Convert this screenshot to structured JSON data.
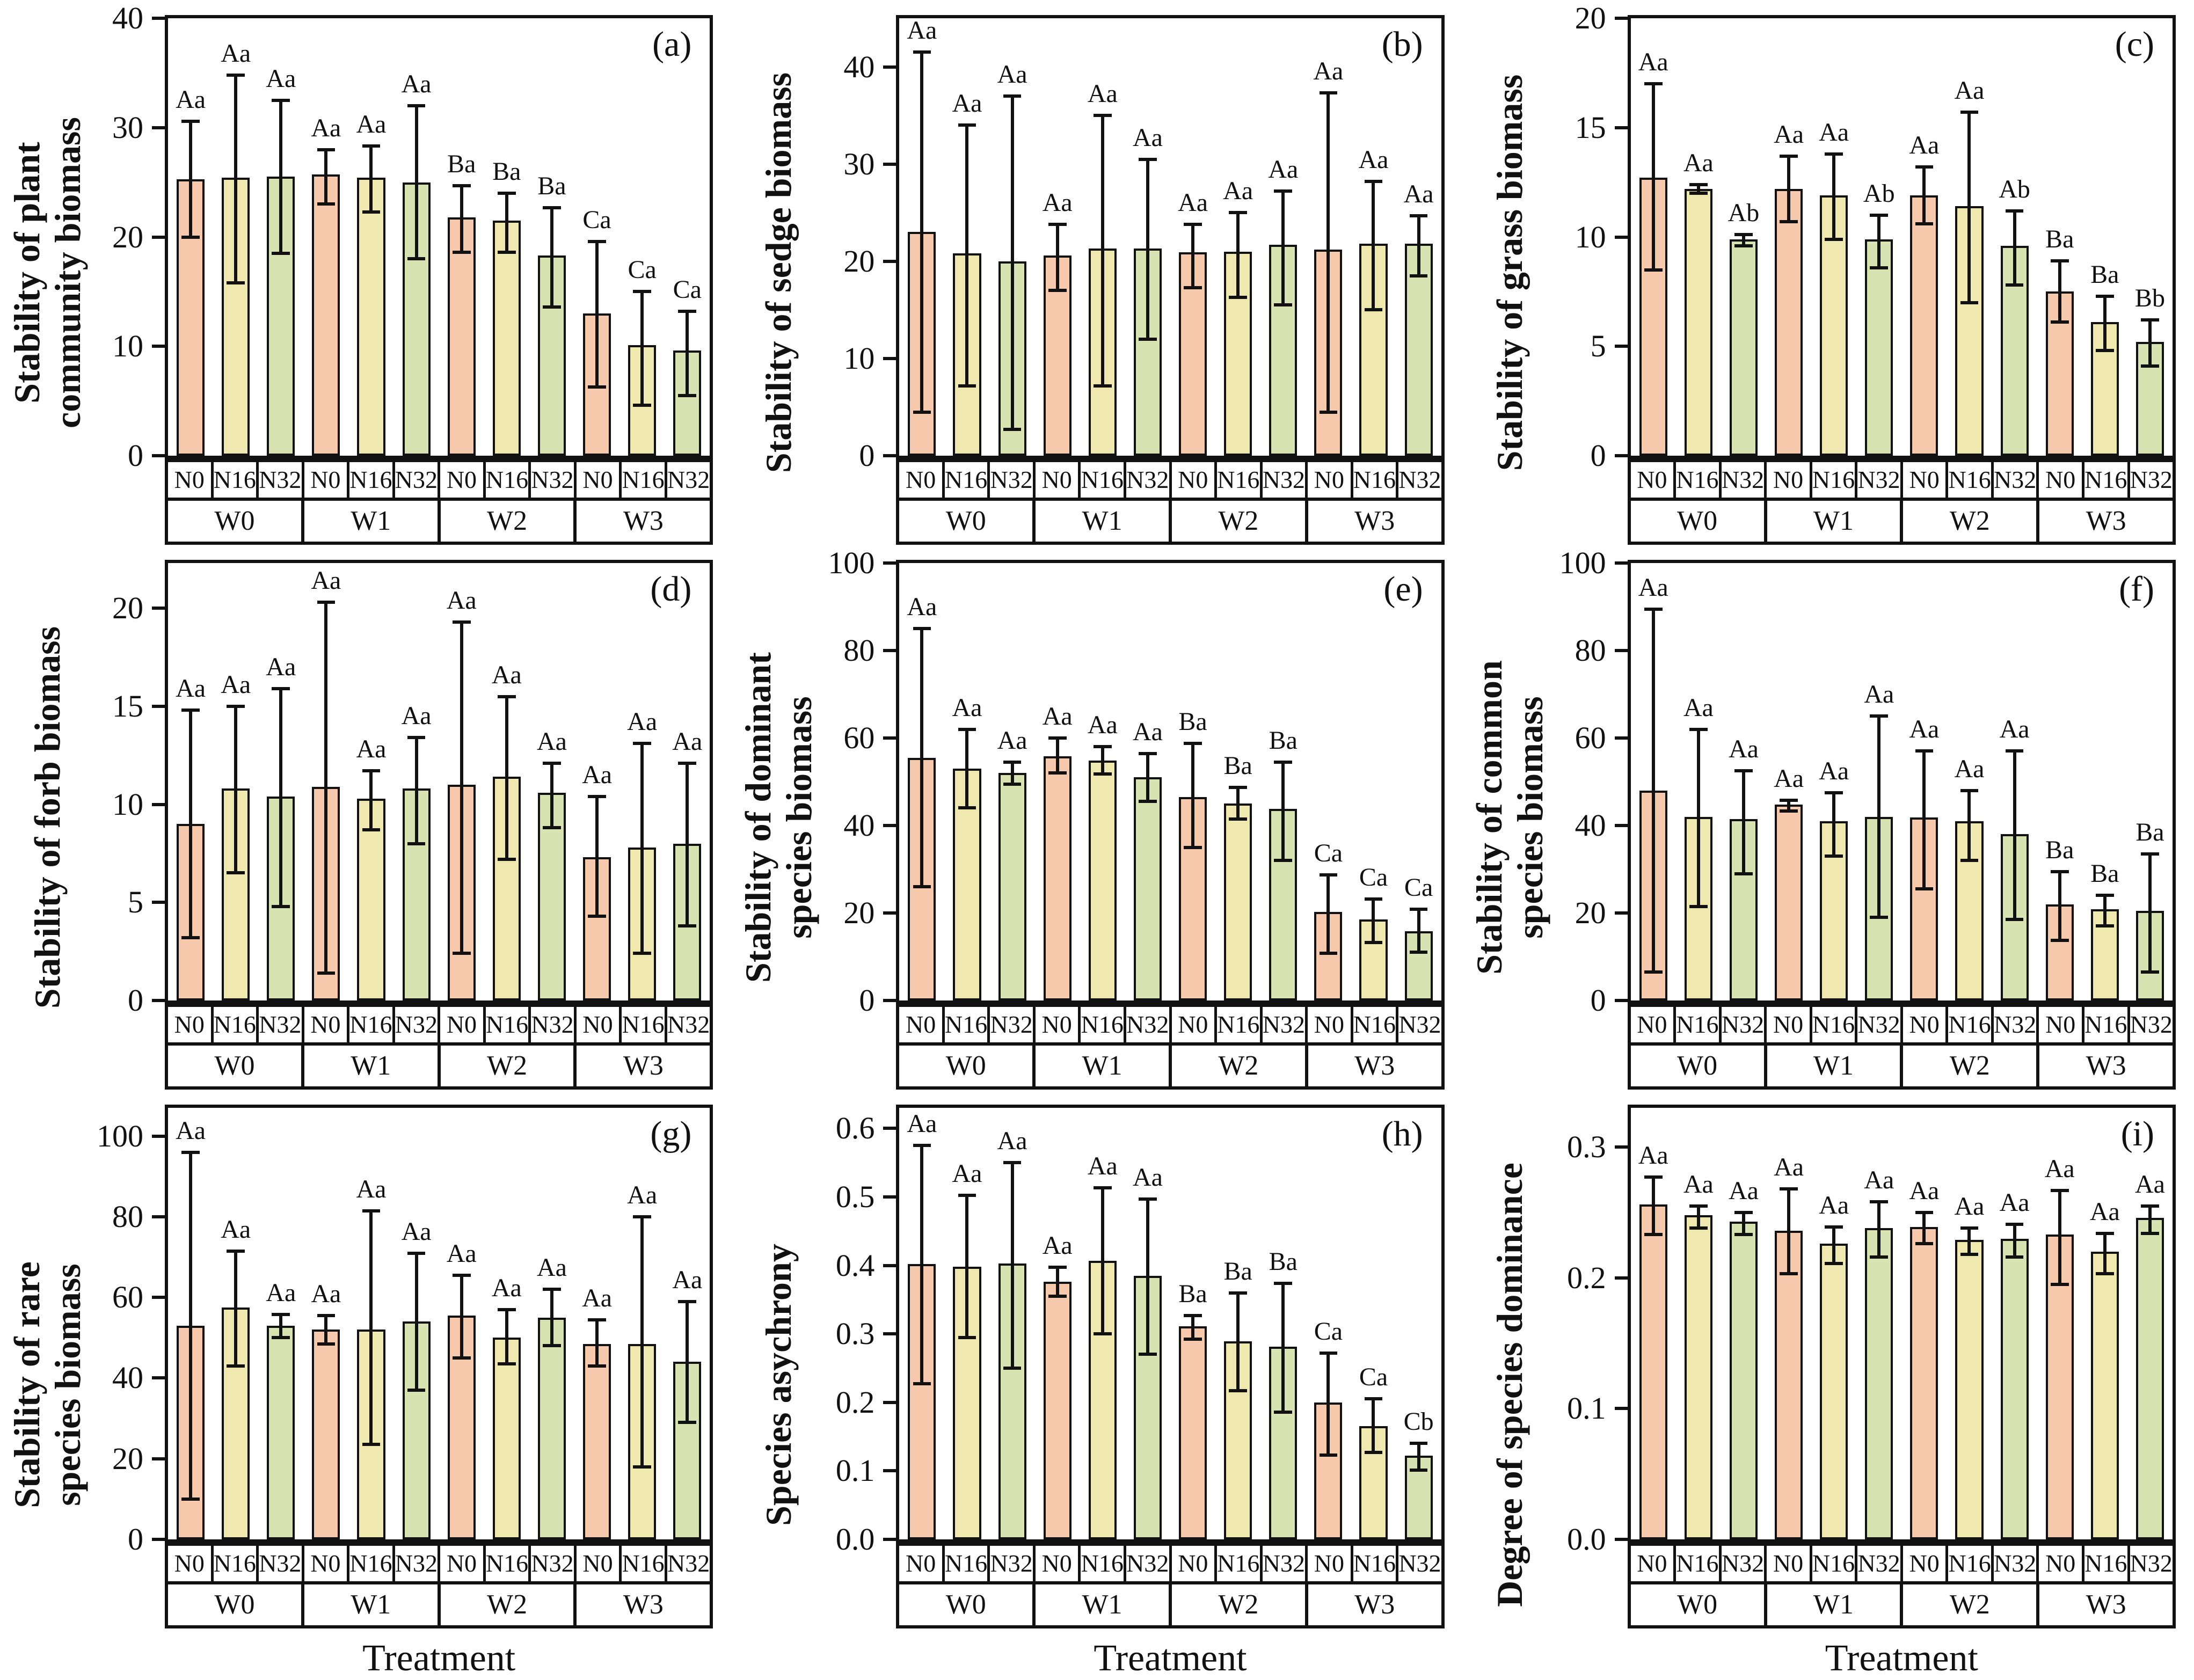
{
  "figure": {
    "xlabel": "Treatment",
    "n_labels": [
      "N0",
      "N16",
      "N32"
    ],
    "w_labels": [
      "W0",
      "W1",
      "W2",
      "W3"
    ],
    "colors": {
      "n0_bar": "#F7C9AC",
      "n16_bar": "#EFE9AF",
      "n32_bar": "#D7E3B0",
      "outline": "#111111"
    }
  },
  "chart_data": [
    {
      "id": "a",
      "type": "bar",
      "panel_label": "(a)",
      "ylabel_lines": [
        "Stability of plant",
        "community biomass"
      ],
      "ylim": [
        0,
        40
      ],
      "yticks": [
        0,
        10,
        20,
        30,
        40
      ],
      "ytick_labels": [
        "0",
        "10",
        "20",
        "30",
        "40"
      ],
      "groups": [
        "W0",
        "W1",
        "W2",
        "W3"
      ],
      "sub_labels": [
        "N0",
        "N16",
        "N32"
      ],
      "values": [
        25.3,
        25.4,
        25.5,
        25.7,
        25.4,
        25.0,
        21.8,
        21.5,
        18.3,
        13.0,
        10.1,
        9.6
      ],
      "err_low": [
        20.0,
        15.8,
        18.5,
        23.0,
        22.3,
        18.0,
        18.6,
        18.6,
        13.6,
        6.3,
        4.6,
        5.5
      ],
      "err_high": [
        30.6,
        34.8,
        32.5,
        28.0,
        28.3,
        32.0,
        24.7,
        24.0,
        22.7,
        19.6,
        15.0,
        13.2
      ],
      "letters": [
        "Aa",
        "Aa",
        "Aa",
        "Aa",
        "Aa",
        "Aa",
        "Ba",
        "Ba",
        "Ba",
        "Ca",
        "Ca",
        "Ca"
      ],
      "show_xlabel": false
    },
    {
      "id": "b",
      "type": "bar",
      "panel_label": "(b)",
      "ylabel_lines": [
        "Stability of sedge biomass"
      ],
      "ylim": [
        0,
        45
      ],
      "yticks": [
        0,
        10,
        20,
        30,
        40
      ],
      "ytick_labels": [
        "0",
        "10",
        "20",
        "30",
        "40"
      ],
      "groups": [
        "W0",
        "W1",
        "W2",
        "W3"
      ],
      "sub_labels": [
        "N0",
        "N16",
        "N32"
      ],
      "values": [
        23.0,
        20.8,
        20.0,
        20.6,
        21.3,
        21.3,
        20.9,
        21.0,
        21.7,
        21.2,
        21.8,
        21.8
      ],
      "err_low": [
        4.5,
        7.2,
        2.7,
        17.0,
        7.2,
        12.0,
        17.3,
        16.3,
        15.5,
        4.5,
        15.0,
        18.5
      ],
      "err_high": [
        41.5,
        34.0,
        37.0,
        23.8,
        35.0,
        30.5,
        23.8,
        25.0,
        27.2,
        37.3,
        28.2,
        24.7
      ],
      "letters": [
        "Aa",
        "Aa",
        "Aa",
        "Aa",
        "Aa",
        "Aa",
        "Aa",
        "Aa",
        "Aa",
        "Aa",
        "Aa",
        "Aa"
      ],
      "show_xlabel": false
    },
    {
      "id": "c",
      "type": "bar",
      "panel_label": "(c)",
      "ylabel_lines": [
        "Stability of grass biomass"
      ],
      "ylim": [
        0,
        20
      ],
      "yticks": [
        0,
        5,
        10,
        15,
        20
      ],
      "ytick_labels": [
        "0",
        "5",
        "10",
        "15",
        "20"
      ],
      "groups": [
        "W0",
        "W1",
        "W2",
        "W3"
      ],
      "sub_labels": [
        "N0",
        "N16",
        "N32"
      ],
      "values": [
        12.7,
        12.2,
        9.9,
        12.2,
        11.9,
        9.9,
        11.9,
        11.4,
        9.6,
        7.5,
        6.1,
        5.2
      ],
      "err_low": [
        8.5,
        12.0,
        9.6,
        10.7,
        9.9,
        8.6,
        10.6,
        7.0,
        7.8,
        6.1,
        4.8,
        4.1
      ],
      "err_high": [
        17.0,
        12.4,
        10.1,
        13.7,
        13.8,
        11.0,
        13.2,
        15.7,
        11.2,
        8.9,
        7.3,
        6.2
      ],
      "letters": [
        "Aa",
        "Aa",
        "Ab",
        "Aa",
        "Aa",
        "Ab",
        "Aa",
        "Aa",
        "Ab",
        "Ba",
        "Ba",
        "Bb"
      ],
      "show_xlabel": false
    },
    {
      "id": "d",
      "type": "bar",
      "panel_label": "(d)",
      "ylabel_lines": [
        "Stability of forb biomass"
      ],
      "ylim": [
        0,
        22.3
      ],
      "yticks": [
        0,
        5,
        10,
        15,
        20
      ],
      "ytick_labels": [
        "0",
        "5",
        "10",
        "15",
        "20"
      ],
      "groups": [
        "W0",
        "W1",
        "W2",
        "W3"
      ],
      "sub_labels": [
        "N0",
        "N16",
        "N32"
      ],
      "values": [
        9.0,
        10.8,
        10.4,
        10.9,
        10.3,
        10.8,
        11.0,
        11.4,
        10.6,
        7.3,
        7.8,
        8.0
      ],
      "err_low": [
        3.2,
        6.5,
        4.8,
        1.4,
        8.7,
        8.0,
        2.4,
        7.2,
        8.8,
        4.3,
        2.4,
        3.8
      ],
      "err_high": [
        14.8,
        15.0,
        15.9,
        20.3,
        11.7,
        13.4,
        19.3,
        15.5,
        12.1,
        10.4,
        13.1,
        12.1
      ],
      "letters": [
        "Aa",
        "Aa",
        "Aa",
        "Aa",
        "Aa",
        "Aa",
        "Aa",
        "Aa",
        "Aa",
        "Aa",
        "Aa",
        "Aa"
      ],
      "show_xlabel": false
    },
    {
      "id": "e",
      "type": "bar",
      "panel_label": "(e)",
      "ylabel_lines": [
        "Stability of dominant",
        "species biomass"
      ],
      "ylim": [
        0,
        100
      ],
      "yticks": [
        0,
        20,
        40,
        60,
        80,
        100
      ],
      "ytick_labels": [
        "0",
        "20",
        "40",
        "60",
        "80",
        "100"
      ],
      "groups": [
        "W0",
        "W1",
        "W2",
        "W3"
      ],
      "sub_labels": [
        "N0",
        "N16",
        "N32"
      ],
      "values": [
        55.5,
        53.0,
        52.0,
        55.8,
        54.8,
        51.0,
        46.5,
        45.0,
        43.8,
        20.3,
        18.5,
        15.8
      ],
      "err_low": [
        26.0,
        44.0,
        49.5,
        52.0,
        51.8,
        45.5,
        35.0,
        41.5,
        32.0,
        10.8,
        13.3,
        11.0
      ],
      "err_high": [
        85.0,
        62.0,
        54.5,
        60.0,
        58.0,
        56.5,
        58.8,
        48.7,
        54.5,
        28.7,
        23.2,
        20.8
      ],
      "letters": [
        "Aa",
        "Aa",
        "Aa",
        "Aa",
        "Aa",
        "Aa",
        "Ba",
        "Ba",
        "Ba",
        "Ca",
        "Ca",
        "Ca"
      ],
      "show_xlabel": false
    },
    {
      "id": "f",
      "type": "bar",
      "panel_label": "(f)",
      "ylabel_lines": [
        "Stability of common",
        "species biomass"
      ],
      "ylim": [
        0,
        100
      ],
      "yticks": [
        0,
        20,
        40,
        60,
        80,
        100
      ],
      "ytick_labels": [
        "0",
        "20",
        "40",
        "60",
        "80",
        "100"
      ],
      "groups": [
        "W0",
        "W1",
        "W2",
        "W3"
      ],
      "sub_labels": [
        "N0",
        "N16",
        "N32"
      ],
      "values": [
        48.0,
        42.0,
        41.5,
        44.8,
        41.0,
        42.0,
        41.8,
        41.0,
        38.0,
        22.0,
        20.8,
        20.5
      ],
      "err_low": [
        6.5,
        21.5,
        29.0,
        43.3,
        33.0,
        19.0,
        25.5,
        32.0,
        18.5,
        13.8,
        17.0,
        6.5
      ],
      "err_high": [
        89.5,
        62.0,
        52.5,
        45.8,
        47.5,
        65.0,
        57.0,
        48.0,
        57.0,
        29.5,
        24.0,
        33.5
      ],
      "letters": [
        "Aa",
        "Aa",
        "Aa",
        "Aa",
        "Aa",
        "Aa",
        "Aa",
        "Aa",
        "Aa",
        "Ba",
        "Ba",
        "Ba"
      ],
      "show_xlabel": false
    },
    {
      "id": "g",
      "type": "bar",
      "panel_label": "(g)",
      "ylabel_lines": [
        "Stability of rare",
        "species biomass"
      ],
      "ylim": [
        0,
        107
      ],
      "yticks": [
        0,
        20,
        40,
        60,
        80,
        100
      ],
      "ytick_labels": [
        "0",
        "20",
        "40",
        "60",
        "80",
        "100"
      ],
      "groups": [
        "W0",
        "W1",
        "W2",
        "W3"
      ],
      "sub_labels": [
        "N0",
        "N16",
        "N32"
      ],
      "values": [
        53.0,
        57.5,
        53.0,
        52.0,
        52.0,
        54.0,
        55.5,
        50.0,
        55.0,
        48.5,
        48.5,
        44.0
      ],
      "err_low": [
        10.0,
        43.0,
        50.0,
        48.5,
        23.5,
        37.0,
        45.0,
        43.5,
        48.0,
        43.0,
        18.0,
        29.0
      ],
      "err_high": [
        96.0,
        71.5,
        55.8,
        55.5,
        81.5,
        71.0,
        65.5,
        57.0,
        62.0,
        54.5,
        80.0,
        59.0
      ],
      "letters": [
        "Aa",
        "Aa",
        "Aa",
        "Aa",
        "Aa",
        "Aa",
        "Aa",
        "Aa",
        "Aa",
        "Aa",
        "Aa",
        "Aa"
      ],
      "show_xlabel": true
    },
    {
      "id": "h",
      "type": "bar",
      "panel_label": "(h)",
      "ylabel_lines": [
        "Species asychrony"
      ],
      "ylim": [
        0,
        0.63
      ],
      "yticks": [
        0,
        0.1,
        0.2,
        0.3,
        0.4,
        0.5,
        0.6
      ],
      "ytick_labels": [
        "0.0",
        "0.1",
        "0.2",
        "0.3",
        "0.4",
        "0.5",
        "0.6"
      ],
      "groups": [
        "W0",
        "W1",
        "W2",
        "W3"
      ],
      "sub_labels": [
        "N0",
        "N16",
        "N32"
      ],
      "values": [
        0.402,
        0.398,
        0.403,
        0.376,
        0.407,
        0.385,
        0.311,
        0.289,
        0.281,
        0.2,
        0.165,
        0.122
      ],
      "err_low": [
        0.227,
        0.295,
        0.25,
        0.355,
        0.3,
        0.27,
        0.292,
        0.217,
        0.186,
        0.123,
        0.127,
        0.101
      ],
      "err_high": [
        0.575,
        0.502,
        0.55,
        0.397,
        0.513,
        0.497,
        0.327,
        0.36,
        0.374,
        0.272,
        0.205,
        0.14
      ],
      "letters": [
        "Aa",
        "Aa",
        "Aa",
        "Aa",
        "Aa",
        "Aa",
        "Ba",
        "Ba",
        "Ba",
        "Ca",
        "Ca",
        "Cb"
      ],
      "show_xlabel": true
    },
    {
      "id": "i",
      "type": "bar",
      "panel_label": "(i)",
      "ylabel_lines": [
        "Degree of species dominance"
      ],
      "ylim": [
        0,
        0.33
      ],
      "yticks": [
        0,
        0.1,
        0.2,
        0.3
      ],
      "ytick_labels": [
        "0.0",
        "0.1",
        "0.2",
        "0.3"
      ],
      "groups": [
        "W0",
        "W1",
        "W2",
        "W3"
      ],
      "sub_labels": [
        "N0",
        "N16",
        "N32"
      ],
      "values": [
        0.256,
        0.248,
        0.243,
        0.236,
        0.226,
        0.238,
        0.239,
        0.229,
        0.23,
        0.233,
        0.22,
        0.246
      ],
      "err_low": [
        0.233,
        0.238,
        0.233,
        0.203,
        0.211,
        0.216,
        0.226,
        0.218,
        0.216,
        0.195,
        0.203,
        0.234
      ],
      "err_high": [
        0.277,
        0.255,
        0.25,
        0.268,
        0.239,
        0.258,
        0.25,
        0.238,
        0.241,
        0.267,
        0.234,
        0.255
      ],
      "letters": [
        "Aa",
        "Aa",
        "Aa",
        "Aa",
        "Aa",
        "Aa",
        "Aa",
        "Aa",
        "Aa",
        "Aa",
        "Aa",
        "Aa"
      ],
      "show_xlabel": true
    }
  ]
}
